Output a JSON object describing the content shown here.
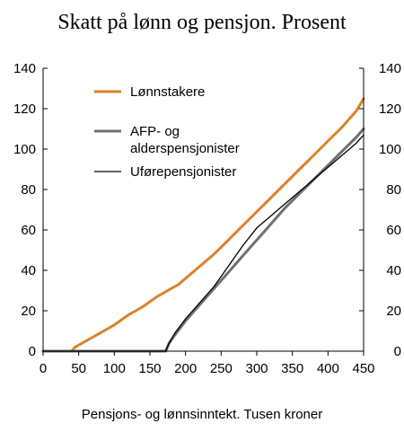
{
  "chart_data": {
    "type": "line",
    "title": "Skatt på lønn og pensjon. Prosent",
    "xlabel": "Pensjons- og lønnsinntekt. Tusen kroner",
    "ylabel": "",
    "xlim": [
      0,
      450
    ],
    "ylim": [
      0,
      140
    ],
    "xticks": [
      0,
      50,
      100,
      150,
      200,
      250,
      300,
      350,
      400,
      450
    ],
    "yticks": [
      0,
      20,
      40,
      60,
      80,
      100,
      120,
      140
    ],
    "secondary_yticks": [
      0,
      20,
      40,
      60,
      80,
      100,
      120,
      140
    ],
    "grid": false,
    "legend_position": "top-left",
    "series": [
      {
        "name": "Lønnstakere",
        "legend_lines": [
          "Lønnstakere"
        ],
        "color": "#d9822b",
        "width": 3,
        "x": [
          0,
          40,
          45,
          55,
          65,
          80,
          100,
          120,
          140,
          160,
          175,
          190,
          200,
          220,
          240,
          260,
          280,
          300,
          320,
          340,
          360,
          380,
          400,
          420,
          440,
          450
        ],
        "y": [
          0,
          0,
          2,
          4,
          6,
          9,
          13,
          18,
          22,
          27,
          30,
          33,
          36,
          42,
          48,
          55,
          62,
          69,
          76,
          83,
          90,
          97,
          104,
          111,
          119,
          125
        ]
      },
      {
        "name": "AFP- og alderspensjonister",
        "legend_lines": [
          "AFP- og",
          "alderspensjonister"
        ],
        "color": "#707070",
        "width": 3,
        "x": [
          0,
          172,
          177,
          185,
          200,
          220,
          240,
          260,
          280,
          300,
          320,
          340,
          360,
          380,
          400,
          420,
          440,
          450
        ],
        "y": [
          0,
          0,
          4,
          8,
          15,
          23,
          31,
          39,
          47,
          55,
          63,
          71,
          78,
          85,
          92,
          99,
          106,
          110
        ]
      },
      {
        "name": "Uførepensjonister",
        "legend_lines": [
          "Uførepensjonister"
        ],
        "color": "#000000",
        "width": 1.3,
        "x": [
          0,
          172,
          177,
          185,
          200,
          220,
          240,
          260,
          280,
          300,
          320,
          340,
          360,
          380,
          400,
          420,
          440,
          450
        ],
        "y": [
          0,
          0,
          4,
          9,
          16,
          24,
          32,
          42,
          52,
          61,
          67,
          73,
          79,
          85,
          91,
          97,
          103,
          107
        ]
      }
    ]
  }
}
